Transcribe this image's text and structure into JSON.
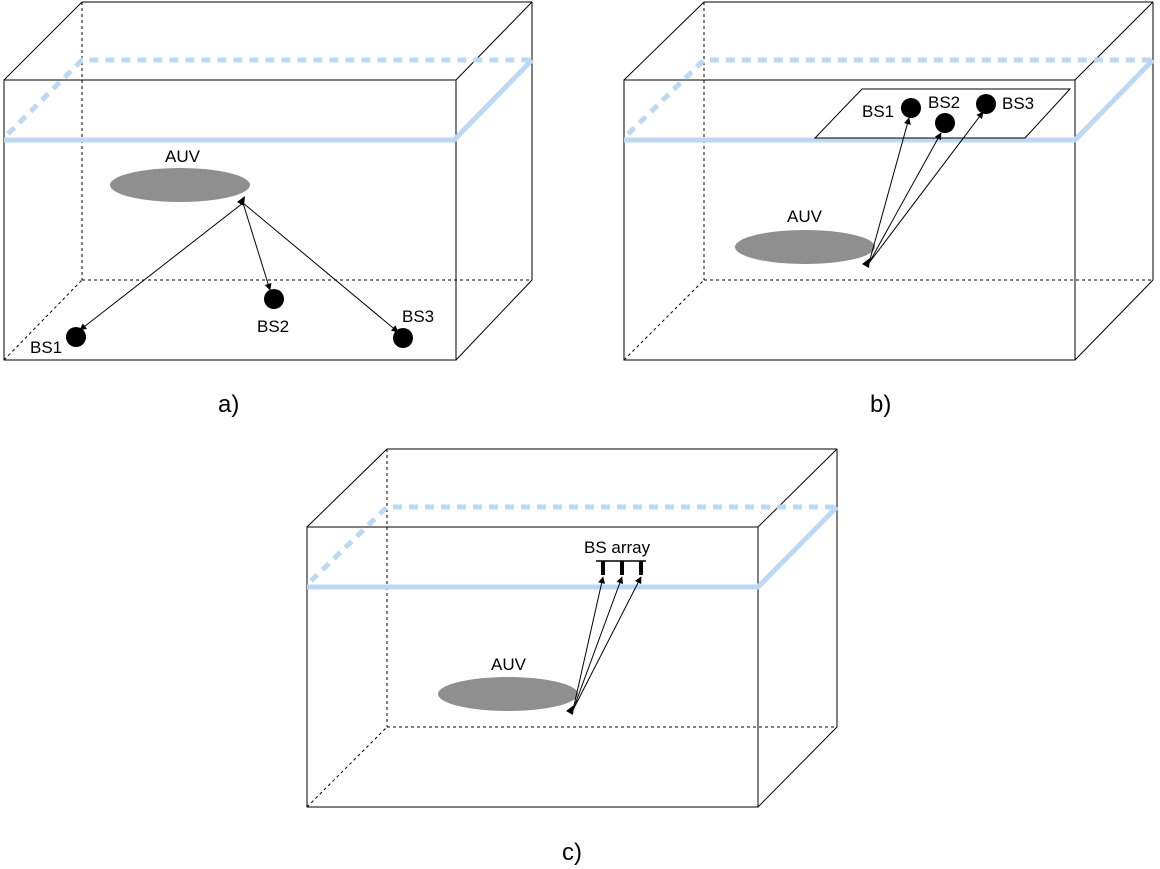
{
  "panels": {
    "a": {
      "caption": "a)",
      "auv_label": "AUV",
      "stations": [
        "BS1",
        "BS2",
        "BS3"
      ]
    },
    "b": {
      "caption": "b)",
      "auv_label": "AUV",
      "stations": [
        "BS1",
        "BS2",
        "BS3"
      ]
    },
    "c": {
      "caption": "c)",
      "auv_label": "AUV",
      "array_label": "BS array"
    }
  },
  "colors": {
    "water_surface": "#bcd8f3",
    "auv": "#8f8f8f",
    "station": "#000000"
  }
}
